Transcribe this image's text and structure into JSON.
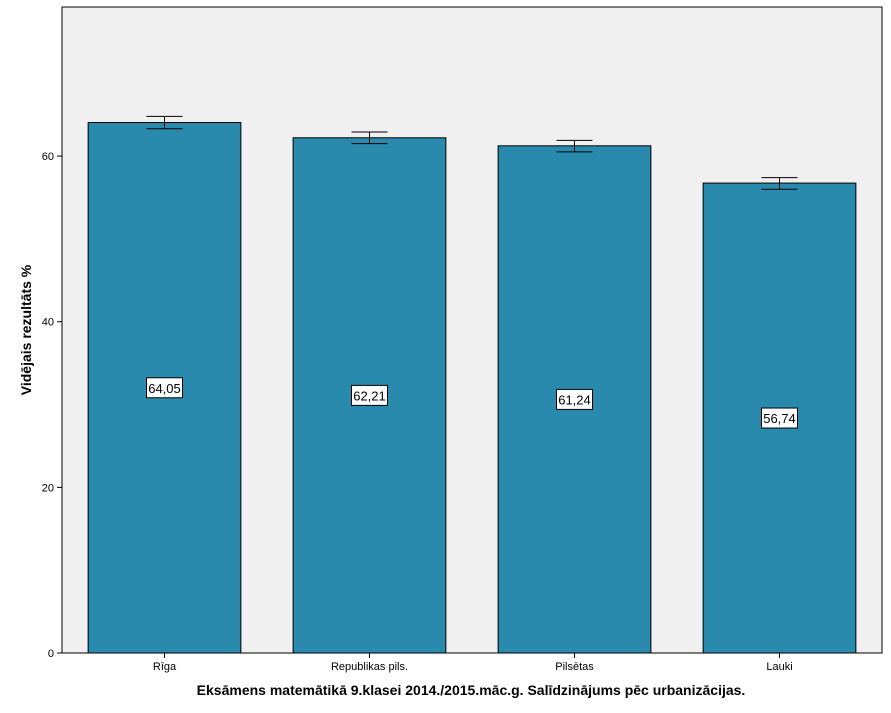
{
  "chart_data": {
    "type": "bar",
    "categories": [
      "Rīga",
      "Republikas pils.",
      "Pilsētas",
      "Lauki"
    ],
    "values": [
      64.05,
      62.21,
      61.24,
      56.74
    ],
    "value_labels": [
      "64,05",
      "62,21",
      "61,24",
      "56,74"
    ],
    "error_bars": [
      {
        "low": 63.3,
        "high": 64.8
      },
      {
        "low": 61.5,
        "high": 62.9
      },
      {
        "low": 60.5,
        "high": 61.9
      },
      {
        "low": 56.0,
        "high": 57.4
      }
    ],
    "xlabel": "Eksāmens matemātikā 9.klasei 2014./2015.māc.g. Salīdzinājums pēc urbanizācijas.",
    "ylabel": "Vidējais rezultāts %",
    "ylim": [
      0,
      78
    ],
    "yticks": [
      0,
      20,
      40,
      60
    ],
    "grid": false,
    "colors": {
      "bar": "#2a8aad",
      "plot_background": "#f0f0f0",
      "bar_outline": "#000000",
      "label_box": "#ffffff"
    }
  }
}
